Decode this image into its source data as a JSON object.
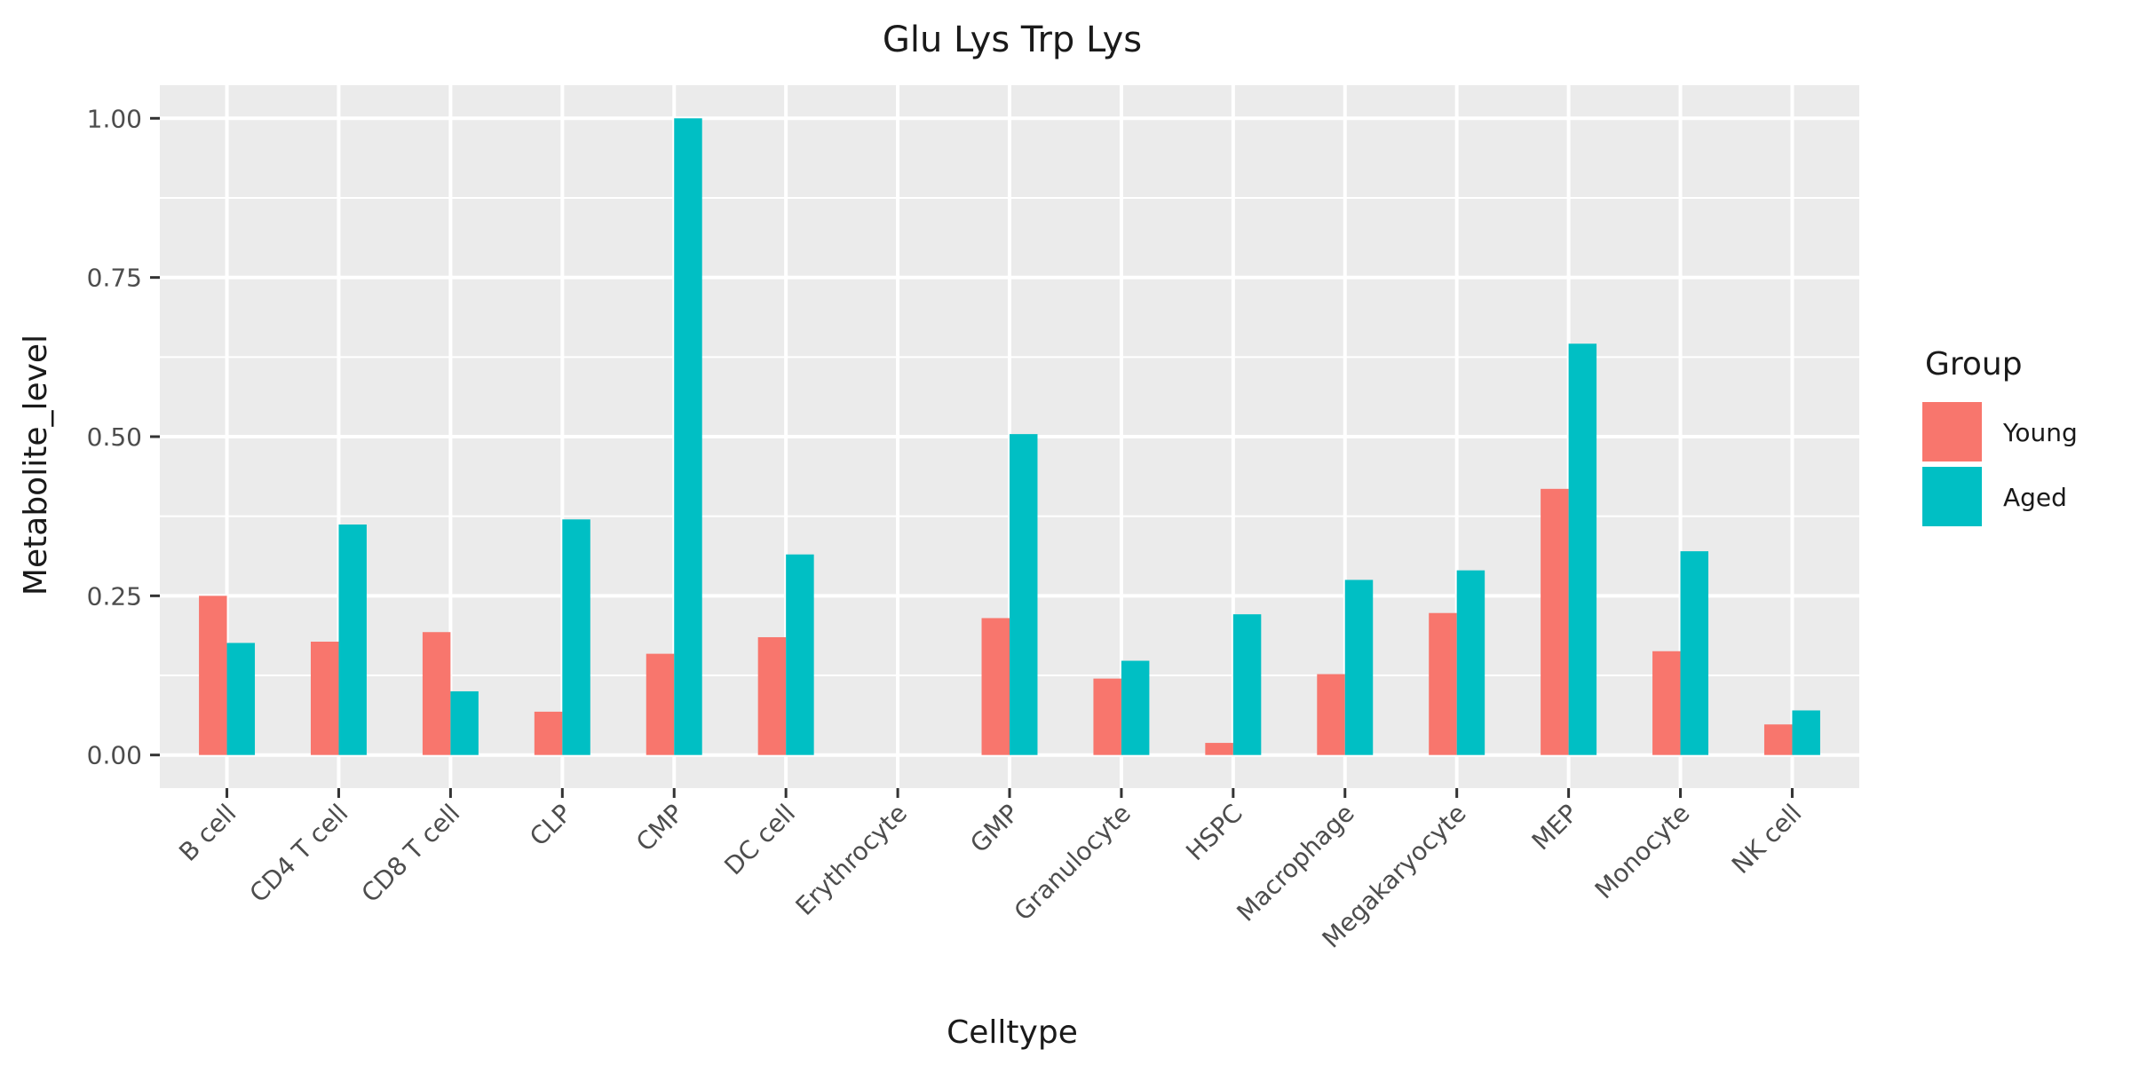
{
  "chart_data": {
    "type": "bar",
    "title": "Glu Lys Trp Lys",
    "xlabel": "Celltype",
    "ylabel": "Metabolite_level",
    "categories": [
      "B cell",
      "CD4 T cell",
      "CD8 T cell",
      "CLP",
      "CMP",
      "DC cell",
      "Erythrocyte",
      "GMP",
      "Granulocyte",
      "HSPC",
      "Macrophage",
      "Megakaryocyte",
      "MEP",
      "Monocyte",
      "NK cell"
    ],
    "series": [
      {
        "name": "Young",
        "color": "#F8766D",
        "values": [
          0.25,
          0.178,
          0.193,
          0.068,
          0.159,
          0.185,
          0.0,
          0.215,
          0.12,
          0.019,
          0.127,
          0.223,
          0.418,
          0.163,
          0.048
        ]
      },
      {
        "name": "Aged",
        "color": "#00BFC4",
        "values": [
          0.176,
          0.362,
          0.1,
          0.37,
          1.0,
          0.315,
          0.0,
          0.504,
          0.148,
          0.221,
          0.275,
          0.29,
          0.646,
          0.32,
          0.07
        ]
      }
    ],
    "ylim": [
      -0.052,
      1.052
    ],
    "yticks": [
      0.0,
      0.25,
      0.5,
      0.75,
      1.0
    ],
    "ytick_labels": [
      "0.00",
      "0.25",
      "0.50",
      "0.75",
      "1.00"
    ],
    "grid": true,
    "panel_background": "#EBEBEB",
    "legend": {
      "title": "Group",
      "position": "right"
    }
  }
}
